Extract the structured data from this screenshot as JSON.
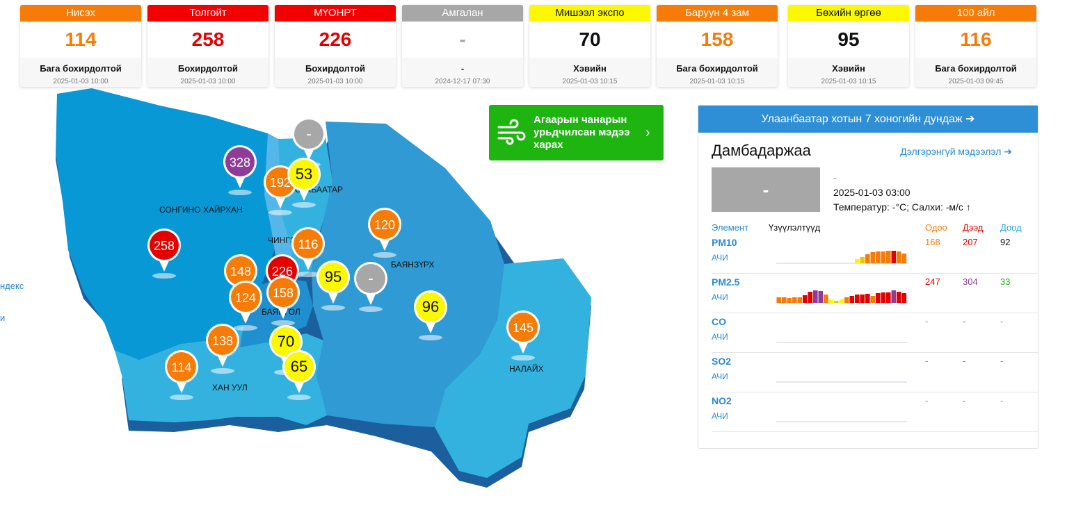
{
  "stations": [
    {
      "name": "Нисэх",
      "value": "114",
      "status": "Бага бохирдолтой",
      "time": "2025-01-03 10:00",
      "color": "#f77b07",
      "text_color": "#f77b07"
    },
    {
      "name": "Толгойт",
      "value": "258",
      "status": "Бохирдолтой",
      "time": "2025-01-03 10:00",
      "color": "#f40000",
      "text_color": "#e50000"
    },
    {
      "name": "МҮОНРТ",
      "value": "226",
      "status": "Бохирдолтой",
      "time": "2025-01-03 10:00",
      "color": "#f40000",
      "text_color": "#e50000"
    },
    {
      "name": "Амгалан",
      "value": "-",
      "status": "-",
      "time": "2024-12-17 07:30",
      "color": "#a7a7a7",
      "text_color": "#a7a7a7"
    },
    {
      "name": "Мишээл экспо",
      "value": "70",
      "status": "Хэвийн",
      "time": "2025-01-03 10:15",
      "color": "#fbf800",
      "text_color": "#111111"
    },
    {
      "name": "Баруун 4 зам",
      "value": "158",
      "status": "Бага бохирдолтой",
      "time": "2025-01-03 10:15",
      "color": "#f77b07",
      "text_color": "#f77b07"
    },
    {
      "name": "Бөхийн өргөө",
      "value": "95",
      "status": "Хэвийн",
      "time": "2025-01-03 10:15",
      "color": "#fbf800",
      "text_color": "#111111"
    },
    {
      "name": "100 айл",
      "value": "116",
      "status": "Бага бохирдолтой",
      "time": "2025-01-03 09:45",
      "color": "#f77b07",
      "text_color": "#f77b07"
    }
  ],
  "map": {
    "districts": [
      "СОНГИНО ХАЙРХАН",
      "ЧИНГЭ",
      "БАЯНЗҮРХ",
      "БАЯНГОЛ",
      "НАЛАЙХ",
      "ХАН УУЛ",
      "СҮХБААТАР"
    ],
    "pins": [
      {
        "value": "-",
        "color": "#a7a7a7",
        "text": "#ffffff"
      },
      {
        "value": "328",
        "color": "#8e3c97",
        "text": "#ffffff"
      },
      {
        "value": "192",
        "color": "#f77b07",
        "text": "#ffffff"
      },
      {
        "value": "53",
        "color": "#fbf800",
        "text": "#111111"
      },
      {
        "value": "120",
        "color": "#f77b07",
        "text": "#ffffff"
      },
      {
        "value": "258",
        "color": "#e50000",
        "text": "#ffffff"
      },
      {
        "value": "116",
        "color": "#f77b07",
        "text": "#ffffff"
      },
      {
        "value": "148",
        "color": "#f77b07",
        "text": "#ffffff"
      },
      {
        "value": "226",
        "color": "#e50000",
        "text": "#ffffff"
      },
      {
        "value": "95",
        "color": "#fbf800",
        "text": "#111111"
      },
      {
        "value": "-",
        "color": "#a7a7a7",
        "text": "#ffffff"
      },
      {
        "value": "124",
        "color": "#f77b07",
        "text": "#ffffff"
      },
      {
        "value": "158",
        "color": "#f77b07",
        "text": "#ffffff"
      },
      {
        "value": "96",
        "color": "#fbf800",
        "text": "#111111"
      },
      {
        "value": "145",
        "color": "#f77b07",
        "text": "#ffffff"
      },
      {
        "value": "138",
        "color": "#f77b07",
        "text": "#ffffff"
      },
      {
        "value": "70",
        "color": "#fbf800",
        "text": "#111111"
      },
      {
        "value": "114",
        "color": "#f77b07",
        "text": "#ffffff"
      },
      {
        "value": "65",
        "color": "#fbf800",
        "text": "#111111"
      }
    ]
  },
  "left_links": [
    "ндекс",
    "и"
  ],
  "forecast_button": {
    "label_line1": "Агаарын чанарын",
    "label_line2": "урьдчилсан мэдээ",
    "label_line3": "харах"
  },
  "panel": {
    "header": "Улаанбаатар хотын 7 хоногийн дундаж",
    "station_name": "Дамбадаржаа",
    "more_link": "Дэлгэрэнгүй мэдээлэл",
    "aqi_value": "-",
    "status": "-",
    "date": "2025-01-03 03:00",
    "weather": "Температур:   -°C; Салхи:   -м/с",
    "columns": {
      "element": "Элемент",
      "measurements": "Үзүүлэлтүүд",
      "current": "Одоо",
      "max": "Дээд",
      "min": "Доод"
    },
    "colors": {
      "current": "#f77b07",
      "max": "#e50000",
      "min": "#2aa6d6"
    },
    "rows": [
      {
        "element": "PM10",
        "unit": "АЧИ",
        "current": "168",
        "max": "207",
        "min": "92",
        "current_color": "#f77b07",
        "max_color": "#e50000",
        "min_color": "#111111"
      },
      {
        "element": "PM2.5",
        "unit": "АЧИ",
        "current": "247",
        "max": "304",
        "min": "33",
        "current_color": "#e50000",
        "max_color": "#8e3c97",
        "min_color": "#1fb510"
      },
      {
        "element": "CO",
        "unit": "АЧИ",
        "current": "-",
        "max": "-",
        "min": "-",
        "current_color": "#888888",
        "max_color": "#1fb510",
        "min_color": "#888888"
      },
      {
        "element": "SO2",
        "unit": "АЧИ",
        "current": "-",
        "max": "-",
        "min": "-",
        "current_color": "#888888",
        "max_color": "#1fb510",
        "min_color": "#888888"
      },
      {
        "element": "NO2",
        "unit": "АЧИ",
        "current": "-",
        "max": "-",
        "min": "-",
        "current_color": "#888888",
        "max_color": "#1fb510",
        "min_color": "#888888"
      }
    ]
  }
}
